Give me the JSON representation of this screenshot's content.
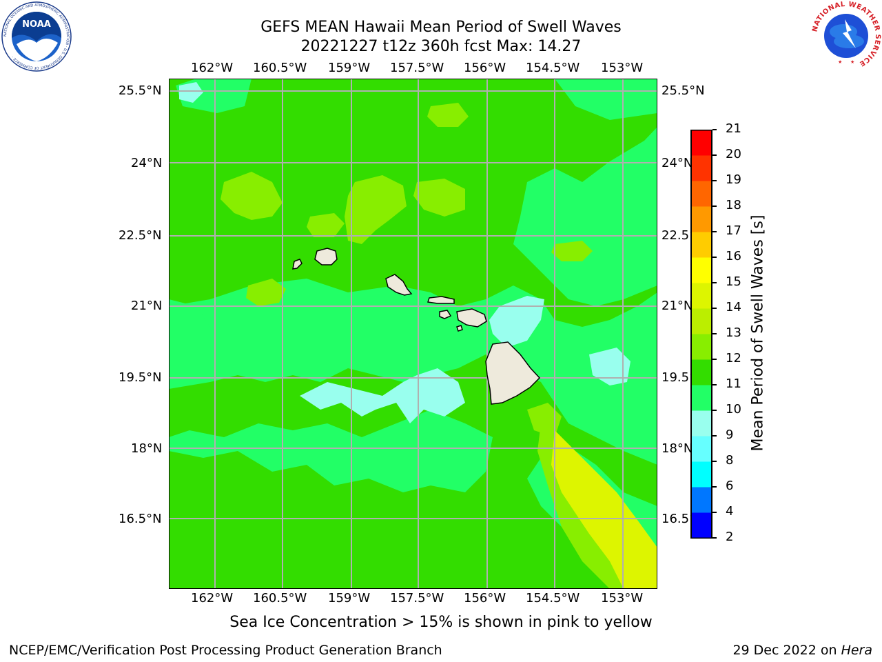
{
  "title": {
    "line1": "GEFS MEAN Hawaii Mean Period of Swell Waves",
    "line2": "20221227 t12z 360h fcst   Max: 14.27"
  },
  "map": {
    "lon_ticks": [
      "162°W",
      "160.5°W",
      "159°W",
      "157.5°W",
      "156°W",
      "154.5°W",
      "153°W"
    ],
    "lat_ticks": [
      "25.5°N",
      "24°N",
      "22.5°N",
      "21°N",
      "19.5°N",
      "18°N",
      "16.5°N"
    ],
    "islands": [
      "Niihau",
      "Kauai",
      "Oahu",
      "Molokai",
      "Lanai",
      "Maui",
      "Kahoolawe",
      "Hawaii"
    ],
    "land_color": "#eeeadc",
    "grid_color": "#b0b0b0"
  },
  "colorbar": {
    "label": "Mean Period of Swell Waves [s]",
    "ticks": [
      "21",
      "20",
      "19",
      "18",
      "17",
      "16",
      "15",
      "14",
      "13",
      "12",
      "11",
      "10",
      "9",
      "8",
      "6",
      "4",
      "2"
    ],
    "colors": [
      "#ff0000",
      "#ff3300",
      "#ff6600",
      "#ff9900",
      "#ffcc00",
      "#ffff00",
      "#ddf500",
      "#bbee00",
      "#88ee00",
      "#33dd00",
      "#22ff66",
      "#99ffee",
      "#66ffff",
      "#00ffff",
      "#0077ff",
      "#0000ff"
    ]
  },
  "caption": "Sea Ice Concentration > 15% is shown in pink to yellow",
  "footer": {
    "left": "NCEP/EMC/Verification Post Processing Product Generation Branch",
    "right_prefix": "29 Dec 2022 on ",
    "right_host": "Hera"
  },
  "logos": {
    "noaa": "NOAA",
    "noaa_ring": "NATIONAL OCEANIC AND ATMOSPHERIC ADMINISTRATION · U.S. DEPARTMENT OF COMMERCE ·",
    "nws_ring": "NATIONAL WEATHER SERVICE"
  }
}
